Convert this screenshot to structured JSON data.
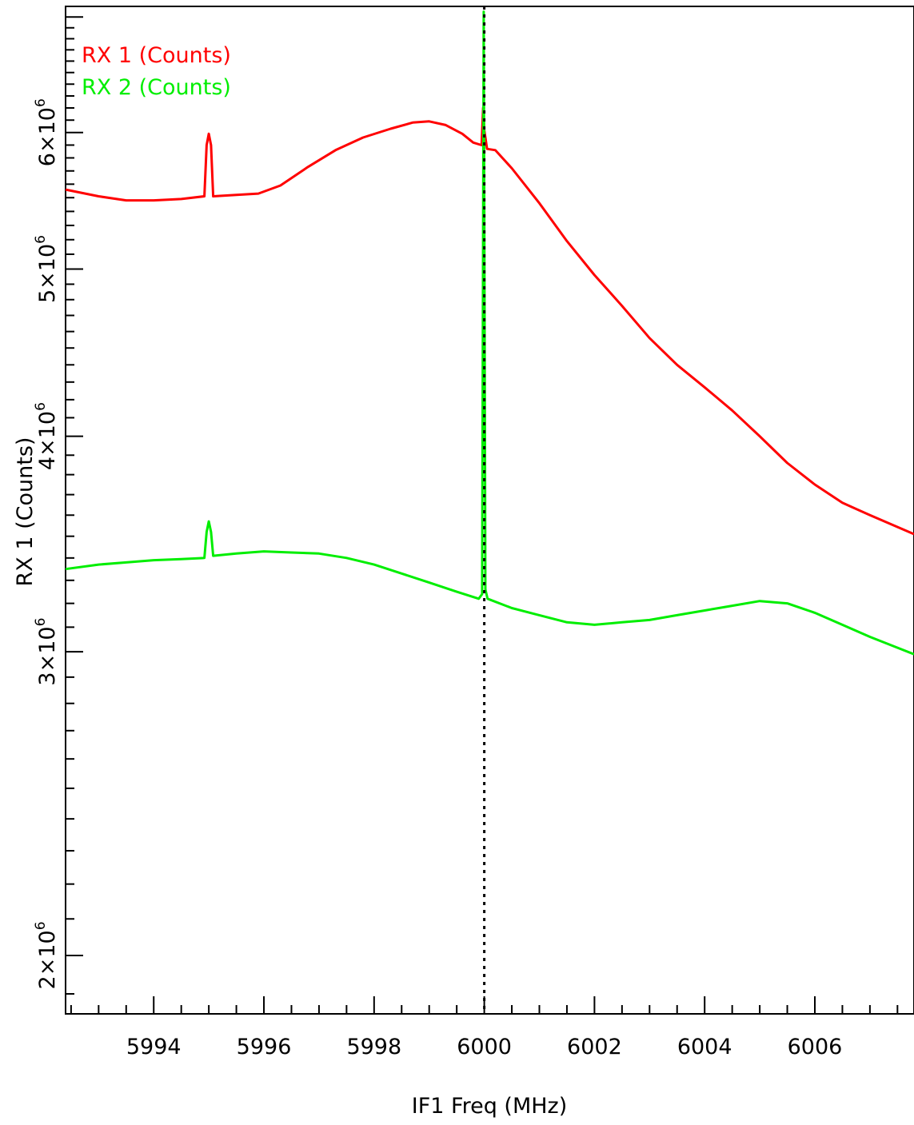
{
  "chart_data": {
    "type": "line",
    "xlabel": "IF1 Freq (MHz)",
    "ylabel": "RX 1 (Counts)",
    "xlim": [
      5992.4,
      6007.8
    ],
    "ylim": [
      1850000,
      7100000
    ],
    "y_scale": "log",
    "x_ticks": [
      5994,
      5996,
      5998,
      6000,
      6002,
      6004,
      6006
    ],
    "x_tick_labels": [
      "5994",
      "5996",
      "5998",
      "6000",
      "6002",
      "6004",
      "6006"
    ],
    "y_ticks": [
      {
        "mantissa": "2",
        "mult": "×10",
        "exp": "6",
        "value": 2000000
      },
      {
        "mantissa": "3",
        "mult": "×10",
        "exp": "6",
        "value": 3000000
      },
      {
        "mantissa": "4",
        "mult": "×10",
        "exp": "6",
        "value": 4000000
      },
      {
        "mantissa": "5",
        "mult": "×10",
        "exp": "6",
        "value": 5000000
      },
      {
        "mantissa": "6",
        "mult": "×10",
        "exp": "6",
        "value": 6000000
      }
    ],
    "vline": {
      "x": 6000.0,
      "style": "dotted",
      "color": "#000000"
    },
    "legend_position": "top-left",
    "series": [
      {
        "name": "RX 1 (Counts)",
        "color": "#ff0000",
        "points": [
          [
            5992.4,
            5560000
          ],
          [
            5993.0,
            5510000
          ],
          [
            5993.5,
            5480000
          ],
          [
            5994.0,
            5480000
          ],
          [
            5994.5,
            5490000
          ],
          [
            5994.92,
            5510000
          ],
          [
            5994.96,
            5900000
          ],
          [
            5995.0,
            5990000
          ],
          [
            5995.04,
            5900000
          ],
          [
            5995.08,
            5510000
          ],
          [
            5995.5,
            5520000
          ],
          [
            5995.9,
            5530000
          ],
          [
            5996.3,
            5590000
          ],
          [
            5996.8,
            5730000
          ],
          [
            5997.3,
            5860000
          ],
          [
            5997.8,
            5960000
          ],
          [
            5998.3,
            6030000
          ],
          [
            5998.7,
            6080000
          ],
          [
            5999.0,
            6090000
          ],
          [
            5999.3,
            6060000
          ],
          [
            5999.6,
            5990000
          ],
          [
            5999.8,
            5920000
          ],
          [
            5999.95,
            5900000
          ],
          [
            5999.98,
            6200000
          ],
          [
            6000.0,
            6020000
          ],
          [
            6000.05,
            5870000
          ],
          [
            6000.2,
            5860000
          ],
          [
            6000.5,
            5720000
          ],
          [
            6001.0,
            5460000
          ],
          [
            6001.5,
            5190000
          ],
          [
            6002.0,
            4960000
          ],
          [
            6002.5,
            4760000
          ],
          [
            6003.0,
            4560000
          ],
          [
            6003.5,
            4400000
          ],
          [
            6004.0,
            4270000
          ],
          [
            6004.5,
            4140000
          ],
          [
            6005.0,
            4000000
          ],
          [
            6005.5,
            3860000
          ],
          [
            6006.0,
            3750000
          ],
          [
            6006.5,
            3660000
          ],
          [
            6007.0,
            3600000
          ],
          [
            6007.8,
            3510000
          ]
        ]
      },
      {
        "name": "RX 2 (Counts)",
        "color": "#00ee00",
        "points": [
          [
            5992.4,
            3350000
          ],
          [
            5993.0,
            3370000
          ],
          [
            5993.5,
            3380000
          ],
          [
            5994.0,
            3390000
          ],
          [
            5994.5,
            3395000
          ],
          [
            5994.92,
            3400000
          ],
          [
            5994.96,
            3520000
          ],
          [
            5995.0,
            3570000
          ],
          [
            5995.04,
            3520000
          ],
          [
            5995.08,
            3410000
          ],
          [
            5995.5,
            3420000
          ],
          [
            5996.0,
            3430000
          ],
          [
            5996.5,
            3425000
          ],
          [
            5997.0,
            3420000
          ],
          [
            5997.5,
            3400000
          ],
          [
            5998.0,
            3370000
          ],
          [
            5998.5,
            3330000
          ],
          [
            5999.0,
            3290000
          ],
          [
            5999.5,
            3250000
          ],
          [
            5999.9,
            3220000
          ],
          [
            5999.96,
            3240000
          ],
          [
            5999.99,
            7050000
          ],
          [
            6000.02,
            3260000
          ],
          [
            6000.06,
            3220000
          ],
          [
            6000.5,
            3180000
          ],
          [
            6001.0,
            3150000
          ],
          [
            6001.5,
            3120000
          ],
          [
            6002.0,
            3110000
          ],
          [
            6002.5,
            3120000
          ],
          [
            6003.0,
            3130000
          ],
          [
            6003.5,
            3150000
          ],
          [
            6004.0,
            3170000
          ],
          [
            6004.5,
            3190000
          ],
          [
            6005.0,
            3210000
          ],
          [
            6005.5,
            3200000
          ],
          [
            6006.0,
            3160000
          ],
          [
            6006.5,
            3110000
          ],
          [
            6007.0,
            3060000
          ],
          [
            6007.8,
            2990000
          ]
        ]
      }
    ]
  }
}
